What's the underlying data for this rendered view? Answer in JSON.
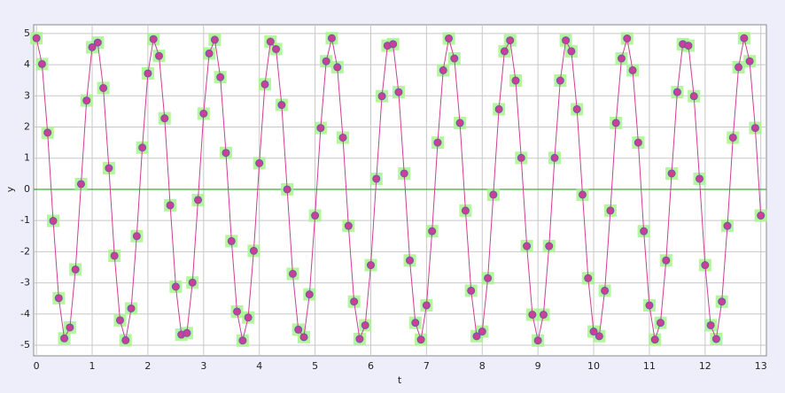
{
  "chart_data": {
    "type": "line",
    "x_label": "t",
    "y_label": "y",
    "x": [
      0,
      0.1,
      0.2,
      0.3,
      0.4,
      0.5,
      0.6,
      0.7,
      0.8,
      0.9,
      1,
      1.1,
      1.2,
      1.3,
      1.4,
      1.5,
      1.6,
      1.7,
      1.8,
      1.9,
      2,
      2.1,
      2.2,
      2.3,
      2.4,
      2.5,
      2.6,
      2.7,
      2.8,
      2.9,
      3,
      3.1,
      3.2,
      3.3,
      3.4,
      3.5,
      3.6,
      3.7,
      3.8,
      3.9,
      4,
      4.1,
      4.2,
      4.3,
      4.4,
      4.5,
      4.6,
      4.7,
      4.8,
      4.9,
      5,
      5.1,
      5.2,
      5.3,
      5.4,
      5.5,
      5.6,
      5.7,
      5.8,
      5.9,
      6,
      6.1,
      6.2,
      6.3,
      6.4,
      6.5,
      6.6,
      6.7,
      6.8,
      6.9,
      7,
      7.1,
      7.2,
      7.3,
      7.4,
      7.5,
      7.6,
      7.7,
      7.8,
      7.9,
      8,
      8.1,
      8.2,
      8.3,
      8.4,
      8.5,
      8.6,
      8.7,
      8.8,
      8.9,
      9,
      9.1,
      9.2,
      9.3,
      9.4,
      9.5,
      9.6,
      9.7,
      9.8,
      9.9,
      10,
      10.1,
      10.2,
      10.3,
      10.4,
      10.5,
      10.6,
      10.7,
      10.8,
      10.9,
      11,
      11.1,
      11.2,
      11.3,
      11.4,
      11.5,
      11.6,
      11.7,
      11.8,
      11.9,
      12,
      12.1,
      12.2,
      12.3,
      12.4,
      12.5,
      12.6,
      12.7,
      12.8,
      12.9,
      13
    ],
    "series": [
      {
        "color": "#cc3f96",
        "values": [
          4.85,
          4.02,
          1.82,
          -1.01,
          -3.49,
          -4.78,
          -4.43,
          -2.57,
          0.17,
          2.85,
          4.56,
          4.71,
          3.25,
          0.68,
          -2.13,
          -4.2,
          -4.84,
          -3.82,
          -1.5,
          1.34,
          3.72,
          4.82,
          4.28,
          2.28,
          -0.51,
          -3.12,
          -4.66,
          -4.61,
          -2.99,
          -0.34,
          2.43,
          4.36,
          4.8,
          3.6,
          1.17,
          -1.66,
          -3.92,
          -4.85,
          -4.11,
          -1.97,
          0.84,
          3.37,
          4.74,
          4.5,
          2.71,
          0,
          -2.71,
          -4.5,
          -4.74,
          -3.37,
          -0.84,
          1.97,
          4.11,
          4.85,
          3.92,
          1.66,
          -1.17,
          -3.6,
          -4.8,
          -4.36,
          -2.43,
          0.34,
          2.99,
          4.61,
          4.66,
          3.12,
          0.51,
          -2.28,
          -4.28,
          -4.82,
          -3.72,
          -1.34,
          1.5,
          3.82,
          4.84,
          4.2,
          2.13,
          -0.68,
          -3.25,
          -4.71,
          -4.56,
          -2.85,
          -0.17,
          2.57,
          4.43,
          4.78,
          3.49,
          1.01,
          -1.82,
          -4.02,
          -4.85,
          -4.02,
          -1.82,
          1.01,
          3.49,
          4.78,
          4.43,
          2.57,
          -0.17,
          -2.85,
          -4.56,
          -4.71,
          -3.25,
          -0.68,
          2.13,
          4.2,
          4.84,
          3.82,
          1.5,
          -1.34,
          -3.72,
          -4.82,
          -4.28,
          -2.28,
          0.51,
          3.12,
          4.66,
          4.61,
          2.99,
          0.34,
          -2.43,
          -4.36,
          -4.8,
          -3.6,
          -1.17,
          1.66,
          3.92,
          4.85,
          4.11,
          1.97,
          -0.84
        ]
      }
    ],
    "reference_line": {
      "value": 0,
      "color": "#22aa22"
    },
    "xlim": [
      -0.05,
      13.1
    ],
    "ylim": [
      -5.34,
      5.28
    ],
    "xticks": [
      0,
      1,
      2,
      3,
      4,
      5,
      6,
      7,
      8,
      9,
      10,
      11,
      12,
      13
    ],
    "yticks": [
      -5,
      -4,
      -3,
      -2,
      -1,
      0,
      1,
      2,
      3,
      4,
      5
    ],
    "grid": true
  }
}
